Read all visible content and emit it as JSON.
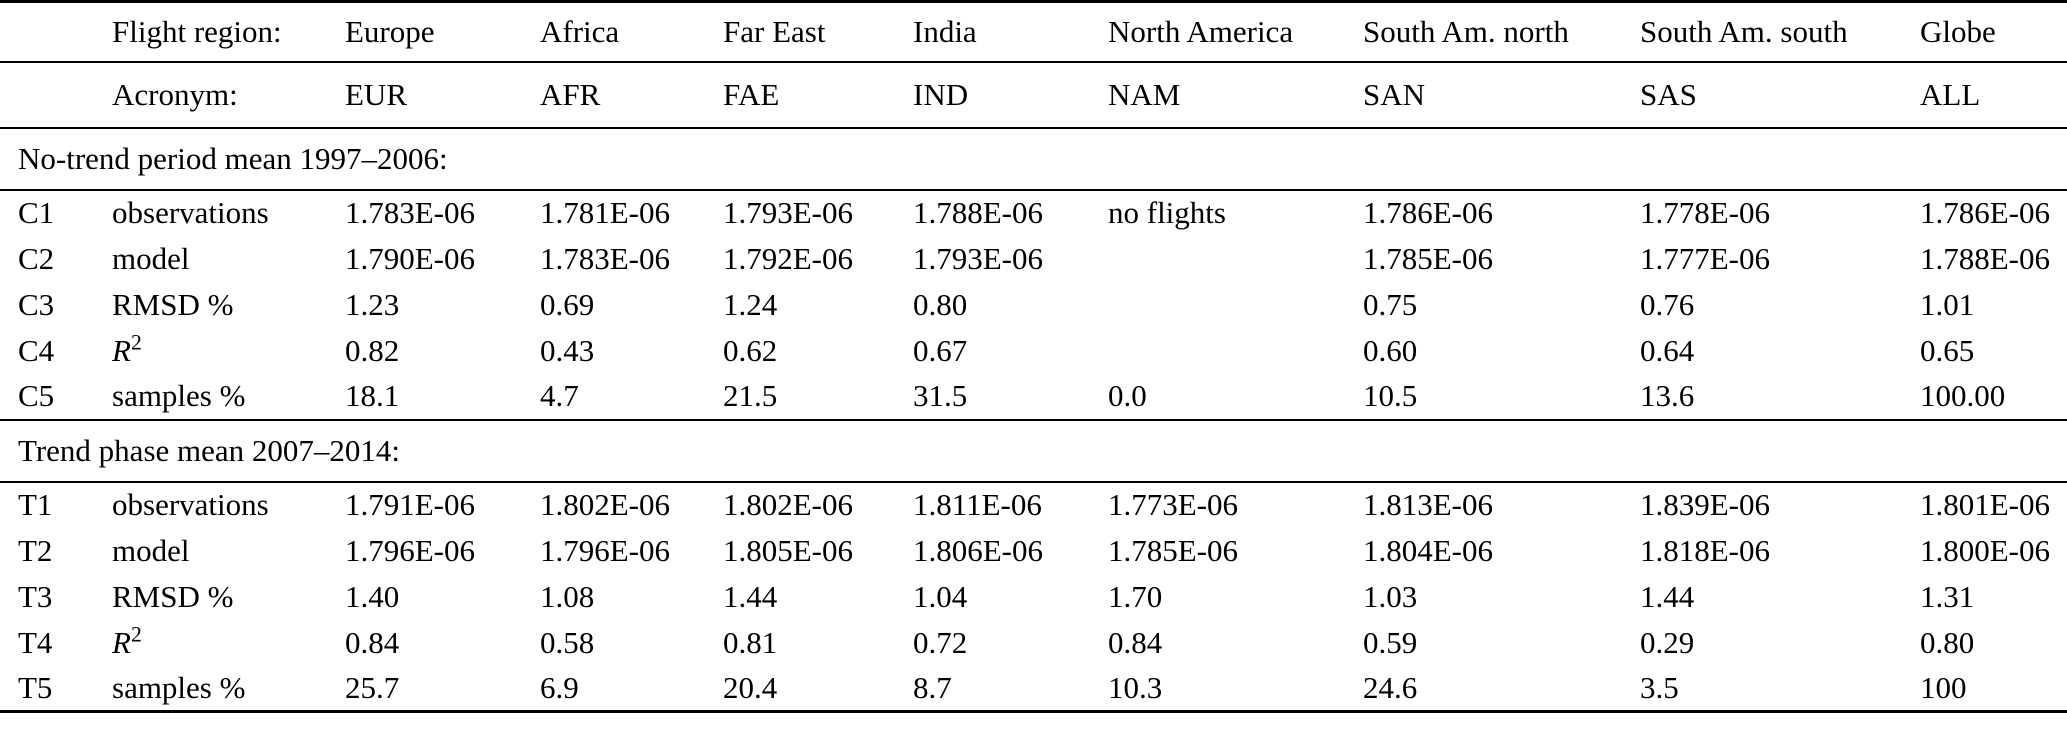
{
  "table": {
    "header": {
      "region_label": "Flight region:",
      "acronym_label": "Acronym:",
      "regions": [
        "Europe",
        "Africa",
        "Far East",
        "India",
        "North America",
        "South Am. north",
        "South Am. south",
        "Globe"
      ],
      "acronyms": [
        "EUR",
        "AFR",
        "FAE",
        "IND",
        "NAM",
        "SAN",
        "SAS",
        "ALL"
      ]
    },
    "sections": [
      {
        "title": "No-trend period mean 1997–2006:",
        "rows": [
          {
            "id": "C1",
            "label": "observations",
            "values": [
              "1.783E-06",
              "1.781E-06",
              "1.793E-06",
              "1.788E-06",
              "no flights",
              "1.786E-06",
              "1.778E-06",
              "1.786E-06"
            ]
          },
          {
            "id": "C2",
            "label": "model",
            "values": [
              "1.790E-06",
              "1.783E-06",
              "1.792E-06",
              "1.793E-06",
              "",
              "1.785E-06",
              "1.777E-06",
              "1.788E-06"
            ]
          },
          {
            "id": "C3",
            "label": "RMSD %",
            "values": [
              "1.23",
              "0.69",
              "1.24",
              "0.80",
              "",
              "0.75",
              "0.76",
              "1.01"
            ]
          },
          {
            "id": "C4",
            "label": "R",
            "label_sup": "2",
            "values": [
              "0.82",
              "0.43",
              "0.62",
              "0.67",
              "",
              "0.60",
              "0.64",
              "0.65"
            ]
          },
          {
            "id": "C5",
            "label": "samples %",
            "values": [
              "18.1",
              "4.7",
              "21.5",
              "31.5",
              "0.0",
              "10.5",
              "13.6",
              "100.00"
            ]
          }
        ]
      },
      {
        "title": "Trend phase mean 2007–2014:",
        "rows": [
          {
            "id": "T1",
            "label": "observations",
            "values": [
              "1.791E-06",
              "1.802E-06",
              "1.802E-06",
              "1.811E-06",
              "1.773E-06",
              "1.813E-06",
              "1.839E-06",
              "1.801E-06"
            ]
          },
          {
            "id": "T2",
            "label": "model",
            "values": [
              "1.796E-06",
              "1.796E-06",
              "1.805E-06",
              "1.806E-06",
              "1.785E-06",
              "1.804E-06",
              "1.818E-06",
              "1.800E-06"
            ]
          },
          {
            "id": "T3",
            "label": "RMSD %",
            "values": [
              "1.40",
              "1.08",
              "1.44",
              "1.04",
              "1.70",
              "1.03",
              "1.44",
              "1.31"
            ]
          },
          {
            "id": "T4",
            "label": "R",
            "label_sup": "2",
            "values": [
              "0.84",
              "0.58",
              "0.81",
              "0.72",
              "0.84",
              "0.59",
              "0.29",
              "0.80"
            ]
          },
          {
            "id": "T5",
            "label": "samples %",
            "values": [
              "25.7",
              "6.9",
              "20.4",
              "8.7",
              "10.3",
              "24.6",
              "3.5",
              "100"
            ]
          }
        ]
      }
    ],
    "colors": {
      "text": "#000000",
      "background": "#ffffff",
      "rule": "#000000"
    }
  }
}
